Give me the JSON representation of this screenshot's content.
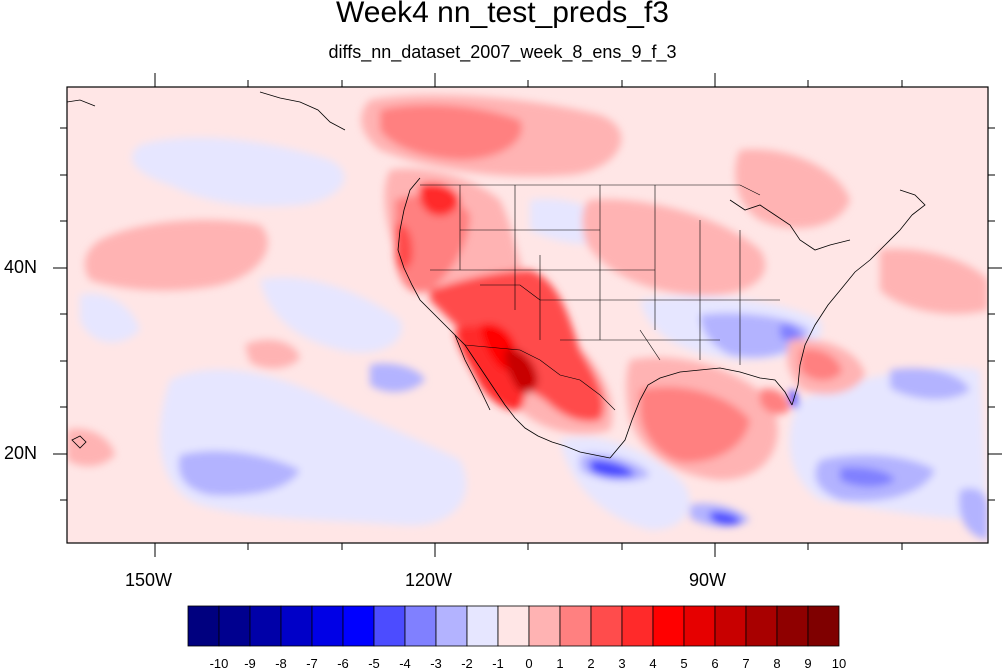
{
  "title": "Week4 nn_test_preds_f3",
  "subtitle": "diffs_nn_dataset_2007_week_8_ens_9_f_3",
  "map": {
    "lon_labels": [
      "150W",
      "120W",
      "90W"
    ],
    "lat_labels": [
      "40N",
      "20N"
    ]
  },
  "colorbar": {
    "labels": [
      "-10",
      "-9",
      "-8",
      "-7",
      "-6",
      "-5",
      "-4",
      "-3",
      "-2",
      "-1",
      "0",
      "1",
      "2",
      "3",
      "4",
      "5",
      "6",
      "7",
      "8",
      "9",
      "10"
    ],
    "colors": [
      "#00007f",
      "#00008f",
      "#0000a8",
      "#0000c8",
      "#0000e6",
      "#0000ff",
      "#4c4cff",
      "#8080ff",
      "#b3b3ff",
      "#e6e6ff",
      "#ffe6e6",
      "#ffb3b3",
      "#ff8080",
      "#ff4c4c",
      "#ff2a2a",
      "#ff0000",
      "#e60000",
      "#c80000",
      "#a80000",
      "#8f0000",
      "#7f0000"
    ]
  },
  "color_scale": {
    "negative": "#0000ff",
    "neutral": "#ffffff",
    "positive": "#ff0000"
  }
}
